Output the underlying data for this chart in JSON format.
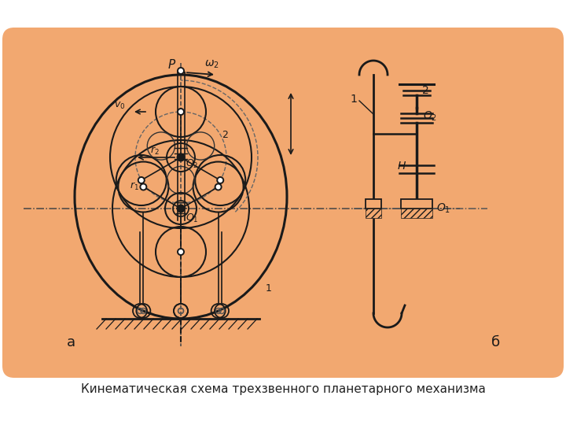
{
  "panel_color": "#F2A870",
  "line_color": "#1a1a1a",
  "title_text": "Кинематическая схема трехзвенного планетарного механизма",
  "label_a": "а",
  "label_b": "б"
}
